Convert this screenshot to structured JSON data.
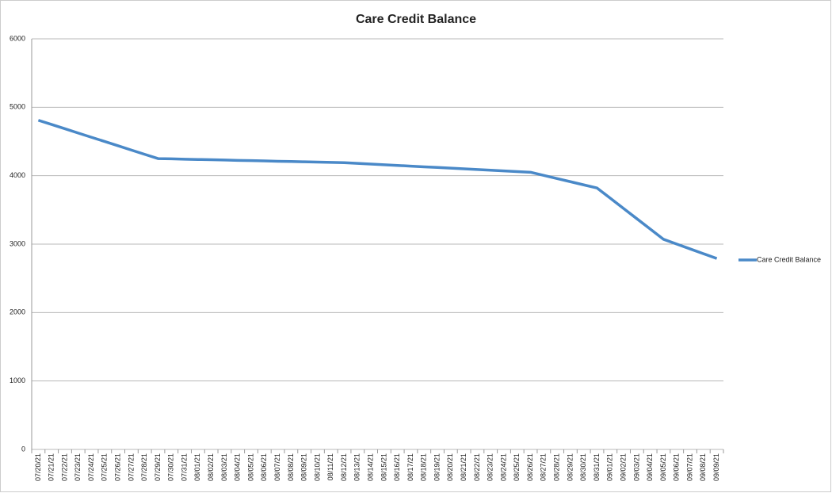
{
  "chart_data": {
    "type": "line",
    "title": "Care Credit Balance",
    "categories": [
      "07/20/21",
      "07/21/21",
      "07/22/21",
      "07/23/21",
      "07/24/21",
      "07/25/21",
      "07/26/21",
      "07/27/21",
      "07/28/21",
      "07/29/21",
      "07/30/21",
      "07/31/21",
      "08/01/21",
      "08/02/21",
      "08/03/21",
      "08/04/21",
      "08/05/21",
      "08/06/21",
      "08/07/21",
      "08/08/21",
      "08/09/21",
      "08/10/21",
      "08/11/21",
      "08/12/21",
      "08/13/21",
      "08/14/21",
      "08/15/21",
      "08/16/21",
      "08/17/21",
      "08/18/21",
      "08/19/21",
      "08/20/21",
      "08/21/21",
      "08/22/21",
      "08/23/21",
      "08/24/21",
      "08/25/21",
      "08/26/21",
      "08/27/21",
      "08/28/21",
      "08/29/21",
      "08/30/21",
      "08/31/21",
      "09/01/21",
      "09/02/21",
      "09/03/21",
      "09/04/21",
      "09/05/21",
      "09/06/21",
      "09/07/21",
      "09/08/21",
      "09/09/21"
    ],
    "series": [
      {
        "name": "Care Credit Balance",
        "color": "#4a89c8",
        "values": [
          4810,
          4748,
          4686,
          4623,
          4561,
          4499,
          4437,
          4374,
          4312,
          4250,
          4246,
          4241,
          4237,
          4233,
          4229,
          4224,
          4220,
          4216,
          4211,
          4207,
          4203,
          4199,
          4194,
          4190,
          4180,
          4170,
          4160,
          4150,
          4140,
          4130,
          4120,
          4110,
          4100,
          4090,
          4080,
          4070,
          4060,
          4050,
          4004,
          3958,
          3912,
          3866,
          3820,
          3670,
          3520,
          3370,
          3220,
          3070,
          3000,
          2930,
          2860,
          2790
        ]
      }
    ],
    "ylim": [
      0,
      6000
    ],
    "yticks": [
      0,
      1000,
      2000,
      3000,
      4000,
      5000,
      6000
    ],
    "grid": true,
    "legend": "right"
  }
}
